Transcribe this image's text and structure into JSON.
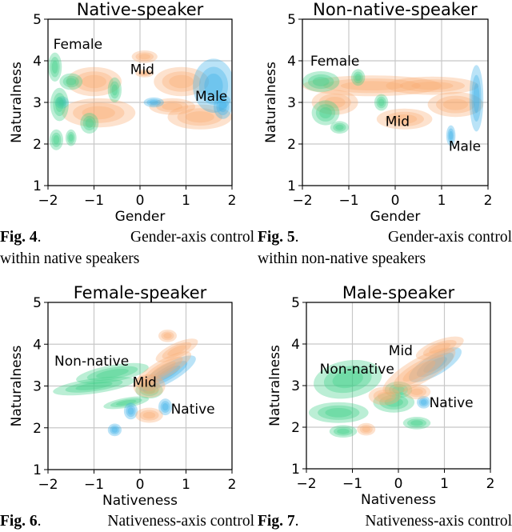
{
  "colors": {
    "green": "#3ccf88",
    "orange": "#f8ad72",
    "blue": "#3aaee8",
    "grid": "#c8c8c8"
  },
  "chart_data": [
    {
      "type": "kde-contour",
      "title": "Native-speaker",
      "xlabel": "Gender",
      "ylabel": "Naturalness",
      "xlim": [
        -2,
        2
      ],
      "ylim": [
        1,
        5
      ],
      "xticks": [
        "−2",
        "−1",
        "0",
        "1",
        "2"
      ],
      "yticks": [
        "1",
        "2",
        "3",
        "4",
        "5"
      ],
      "grid": true,
      "annotations": [
        {
          "text": "Female",
          "x": -1.35,
          "y": 4.4
        },
        {
          "text": "Mid",
          "x": 0.05,
          "y": 3.8
        },
        {
          "text": "Male",
          "x": 1.55,
          "y": 3.15
        }
      ],
      "blobs": [
        {
          "s": "orange",
          "x": -1.0,
          "y": 3.5,
          "rx": 0.6,
          "ry": 0.35
        },
        {
          "s": "orange",
          "x": -0.9,
          "y": 2.75,
          "rx": 0.8,
          "ry": 0.35
        },
        {
          "s": "orange",
          "x": 0.1,
          "y": 4.1,
          "rx": 0.28,
          "ry": 0.15
        },
        {
          "s": "orange",
          "x": 0.1,
          "y": 3.7,
          "rx": 0.2,
          "ry": 0.1
        },
        {
          "s": "orange",
          "x": 0.9,
          "y": 3.5,
          "rx": 0.6,
          "ry": 0.35
        },
        {
          "s": "orange",
          "x": 1.3,
          "y": 2.65,
          "rx": 0.7,
          "ry": 0.3
        },
        {
          "s": "orange",
          "x": 0.7,
          "y": 2.9,
          "rx": 0.5,
          "ry": 0.2
        },
        {
          "s": "blue",
          "x": 1.6,
          "y": 3.4,
          "rx": 0.45,
          "ry": 0.65
        },
        {
          "s": "blue",
          "x": 0.3,
          "y": 3.0,
          "rx": 0.22,
          "ry": 0.12
        },
        {
          "s": "blue",
          "x": 1.8,
          "y": 2.9,
          "rx": 0.2,
          "ry": 0.3
        },
        {
          "s": "blue",
          "x": -1.7,
          "y": 3.0,
          "rx": 0.15,
          "ry": 0.15
        },
        {
          "s": "green",
          "x": -1.85,
          "y": 3.85,
          "rx": 0.15,
          "ry": 0.35
        },
        {
          "s": "green",
          "x": -1.75,
          "y": 2.95,
          "rx": 0.2,
          "ry": 0.4
        },
        {
          "s": "green",
          "x": -1.82,
          "y": 2.1,
          "rx": 0.15,
          "ry": 0.25
        },
        {
          "s": "green",
          "x": -1.5,
          "y": 2.15,
          "rx": 0.12,
          "ry": 0.2
        },
        {
          "s": "green",
          "x": -0.55,
          "y": 3.3,
          "rx": 0.15,
          "ry": 0.3
        },
        {
          "s": "green",
          "x": -1.1,
          "y": 2.5,
          "rx": 0.2,
          "ry": 0.25
        },
        {
          "s": "green",
          "x": -1.5,
          "y": 3.5,
          "rx": 0.25,
          "ry": 0.2
        }
      ]
    },
    {
      "type": "kde-contour",
      "title": "Non-native-speaker",
      "xlabel": "Gender",
      "ylabel": "Naturalness",
      "xlim": [
        -2,
        2
      ],
      "ylim": [
        1,
        5
      ],
      "xticks": [
        "−2",
        "−1",
        "0",
        "1",
        "2"
      ],
      "yticks": [
        "1",
        "2",
        "3",
        "4",
        "5"
      ],
      "grid": true,
      "annotations": [
        {
          "text": "Female",
          "x": -1.3,
          "y": 4.0
        },
        {
          "text": "Mid",
          "x": 0.05,
          "y": 2.55
        },
        {
          "text": "Male",
          "x": 1.5,
          "y": 1.95
        }
      ],
      "blobs": [
        {
          "s": "orange",
          "x": -0.5,
          "y": 3.4,
          "rx": 1.5,
          "ry": 0.25
        },
        {
          "s": "orange",
          "x": 0.8,
          "y": 3.4,
          "rx": 1.0,
          "ry": 0.22
        },
        {
          "s": "orange",
          "x": 0.2,
          "y": 2.6,
          "rx": 0.6,
          "ry": 0.25
        },
        {
          "s": "orange",
          "x": 1.3,
          "y": 2.95,
          "rx": 0.6,
          "ry": 0.3
        },
        {
          "s": "orange",
          "x": -1.3,
          "y": 3.0,
          "rx": 0.5,
          "ry": 0.3
        },
        {
          "s": "blue",
          "x": 1.75,
          "y": 3.1,
          "rx": 0.15,
          "ry": 0.8
        },
        {
          "s": "blue",
          "x": 1.2,
          "y": 2.2,
          "rx": 0.1,
          "ry": 0.25
        },
        {
          "s": "green",
          "x": -1.6,
          "y": 3.5,
          "rx": 0.4,
          "ry": 0.25
        },
        {
          "s": "green",
          "x": -1.5,
          "y": 2.75,
          "rx": 0.3,
          "ry": 0.3
        },
        {
          "s": "green",
          "x": -0.8,
          "y": 3.6,
          "rx": 0.15,
          "ry": 0.2
        },
        {
          "s": "green",
          "x": -1.2,
          "y": 2.4,
          "rx": 0.2,
          "ry": 0.15
        },
        {
          "s": "green",
          "x": -0.3,
          "y": 3.0,
          "rx": 0.15,
          "ry": 0.2
        }
      ]
    },
    {
      "type": "kde-contour",
      "title": "Female-speaker",
      "xlabel": "Nativeness",
      "ylabel": "Naturalness",
      "xlim": [
        -2,
        2
      ],
      "ylim": [
        1,
        5
      ],
      "xticks": [
        "−2",
        "−1",
        "0",
        "1",
        "2"
      ],
      "yticks": [
        "1",
        "2",
        "3",
        "4",
        "5"
      ],
      "grid": true,
      "annotations": [
        {
          "text": "Non-native",
          "x": -1.05,
          "y": 3.6
        },
        {
          "text": "Mid",
          "x": 0.1,
          "y": 3.1
        },
        {
          "text": "Native",
          "x": 1.15,
          "y": 2.45
        }
      ],
      "blobs": [
        {
          "s": "green",
          "x": -1.0,
          "y": 3.0,
          "rx": 0.9,
          "ry": 0.18,
          "rot": -8
        },
        {
          "s": "green",
          "x": -0.6,
          "y": 3.3,
          "rx": 0.8,
          "ry": 0.2,
          "rot": -10
        },
        {
          "s": "green",
          "x": -0.3,
          "y": 2.6,
          "rx": 0.5,
          "ry": 0.12,
          "rot": -10
        },
        {
          "s": "green",
          "x": 0.2,
          "y": 2.9,
          "rx": 0.3,
          "ry": 0.2
        },
        {
          "s": "blue",
          "x": 0.6,
          "y": 3.3,
          "rx": 0.7,
          "ry": 0.22,
          "rot": -30
        },
        {
          "s": "blue",
          "x": 0.55,
          "y": 2.5,
          "rx": 0.15,
          "ry": 0.2
        },
        {
          "s": "blue",
          "x": -0.55,
          "y": 1.95,
          "rx": 0.15,
          "ry": 0.15
        },
        {
          "s": "blue",
          "x": -0.2,
          "y": 2.4,
          "rx": 0.15,
          "ry": 0.2
        },
        {
          "s": "orange",
          "x": 0.5,
          "y": 3.4,
          "rx": 0.7,
          "ry": 0.22,
          "rot": -30
        },
        {
          "s": "orange",
          "x": 0.2,
          "y": 3.0,
          "rx": 0.35,
          "ry": 0.28
        },
        {
          "s": "orange",
          "x": 0.8,
          "y": 3.85,
          "rx": 0.5,
          "ry": 0.18,
          "rot": -25
        },
        {
          "s": "orange",
          "x": 0.6,
          "y": 4.2,
          "rx": 0.2,
          "ry": 0.15
        },
        {
          "s": "orange",
          "x": 0.2,
          "y": 2.3,
          "rx": 0.3,
          "ry": 0.18
        }
      ]
    },
    {
      "type": "kde-contour",
      "title": "Male-speaker",
      "xlabel": "Nativeness",
      "ylabel": "Naturalness",
      "xlim": [
        -2,
        2
      ],
      "ylim": [
        1,
        5
      ],
      "xticks": [
        "−2",
        "−1",
        "0",
        "1",
        "2"
      ],
      "yticks": [
        "1",
        "2",
        "3",
        "4",
        "5"
      ],
      "grid": true,
      "annotations": [
        {
          "text": "Non-native",
          "x": -0.9,
          "y": 3.4
        },
        {
          "text": "Mid",
          "x": 0.05,
          "y": 3.85
        },
        {
          "text": "Native",
          "x": 1.15,
          "y": 2.6
        }
      ],
      "blobs": [
        {
          "s": "green",
          "x": -1.1,
          "y": 3.15,
          "rx": 0.75,
          "ry": 0.45,
          "rot": -10
        },
        {
          "s": "green",
          "x": -1.3,
          "y": 2.35,
          "rx": 0.65,
          "ry": 0.25
        },
        {
          "s": "green",
          "x": -1.2,
          "y": 1.9,
          "rx": 0.3,
          "ry": 0.15
        },
        {
          "s": "green",
          "x": 0.4,
          "y": 2.1,
          "rx": 0.3,
          "ry": 0.15
        },
        {
          "s": "green",
          "x": -0.1,
          "y": 2.6,
          "rx": 0.45,
          "ry": 0.25
        },
        {
          "s": "green",
          "x": 0.0,
          "y": 2.9,
          "rx": 0.3,
          "ry": 0.2
        },
        {
          "s": "blue",
          "x": 0.8,
          "y": 3.5,
          "rx": 0.65,
          "ry": 0.25,
          "rot": -30
        },
        {
          "s": "blue",
          "x": 0.55,
          "y": 2.6,
          "rx": 0.15,
          "ry": 0.15
        },
        {
          "s": "orange",
          "x": 0.45,
          "y": 3.35,
          "rx": 0.9,
          "ry": 0.3,
          "rot": -30
        },
        {
          "s": "orange",
          "x": 0.9,
          "y": 3.9,
          "rx": 0.55,
          "ry": 0.2,
          "rot": -20
        },
        {
          "s": "orange",
          "x": -0.7,
          "y": 1.95,
          "rx": 0.2,
          "ry": 0.15
        },
        {
          "s": "orange",
          "x": -0.3,
          "y": 2.75,
          "rx": 0.35,
          "ry": 0.22
        },
        {
          "s": "orange",
          "x": 0.4,
          "y": 2.85,
          "rx": 0.3,
          "ry": 0.18
        }
      ]
    }
  ],
  "captions": [
    {
      "fig": "Fig.",
      "num": "4",
      "rest": "Gender-axis control",
      "line2": "within native speakers"
    },
    {
      "fig": "Fig.",
      "num": "5",
      "rest": "Gender-axis control",
      "line2": "within non-native speakers"
    },
    {
      "fig": "Fig.",
      "num": "6",
      "rest": "Nativeness-axis control",
      "line2": ""
    },
    {
      "fig": "Fig.",
      "num": "7",
      "rest": "Nativeness-axis control",
      "line2": ""
    }
  ]
}
